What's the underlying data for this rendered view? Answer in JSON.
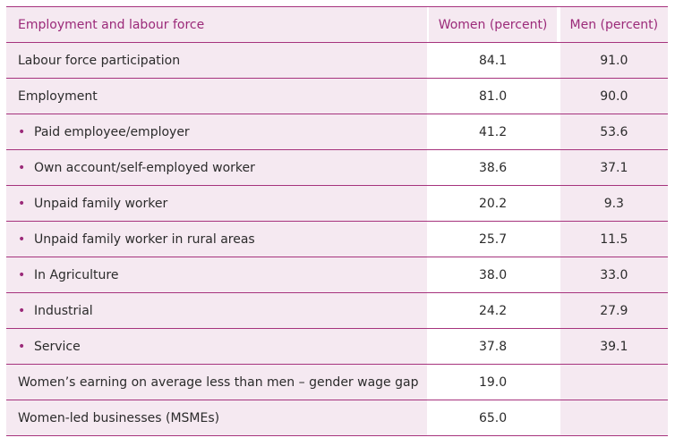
{
  "header": {
    "col1": "Employment and labour force",
    "col2": "Women (percent)",
    "col3": "Men (percent)"
  },
  "rows": [
    {
      "label": "Labour force participation",
      "bullet": false,
      "women": "84.1",
      "men": "91.0"
    },
    {
      "label": "Employment",
      "bullet": false,
      "women": "81.0",
      "men": "90.0"
    },
    {
      "label": "Paid employee/employer",
      "bullet": true,
      "women": "41.2",
      "men": "53.6"
    },
    {
      "label": "Own account/self-employed worker",
      "bullet": true,
      "women": "38.6",
      "men": "37.1"
    },
    {
      "label": "Unpaid family worker",
      "bullet": true,
      "women": "20.2",
      "men": "9.3"
    },
    {
      "label": "Unpaid family worker in rural areas",
      "bullet": true,
      "women": "25.7",
      "men": "11.5"
    },
    {
      "label": "In Agriculture",
      "bullet": true,
      "women": "38.0",
      "men": "33.0"
    },
    {
      "label": "Industrial",
      "bullet": true,
      "women": "24.2",
      "men": "27.9"
    },
    {
      "label": "Service",
      "bullet": true,
      "women": "37.8",
      "men": "39.1"
    },
    {
      "label": "Women’s earning on average less than men – gender wage gap",
      "bullet": false,
      "women": "19.0",
      "men": ""
    },
    {
      "label": "Women-led businesses (MSMEs)",
      "bullet": false,
      "women": "65.0",
      "men": ""
    }
  ],
  "bullet_glyph": "•",
  "colors": {
    "accent": "#a6337d",
    "header_text": "#9b2a79",
    "shaded": "#f5e9f1"
  }
}
